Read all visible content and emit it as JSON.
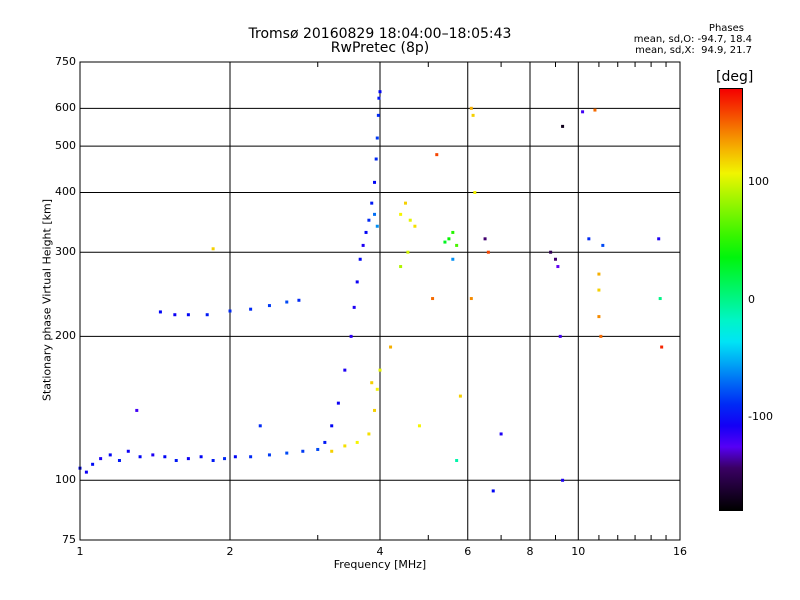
{
  "title_line1": "Tromsø 20160829 18:04:00–18:05:43",
  "title_line2": "RwPretec (8p)",
  "stats": {
    "heading": "Phases",
    "line_o": "mean, sd,O: -94.7, 18.4",
    "line_x": "mean, sd,X:  94.9, 21.7"
  },
  "colorbar": {
    "label": "[deg]",
    "ticks": [
      {
        "value": 100,
        "label": "100"
      },
      {
        "value": 0,
        "label": "0"
      },
      {
        "value": -100,
        "label": "-100"
      }
    ],
    "range": [
      -180,
      180
    ]
  },
  "chart_data": {
    "type": "scatter",
    "xlabel": "Frequency [MHz]",
    "ylabel": "Stationary phase Virtual Height [km]",
    "x_scale": "log",
    "y_scale": "log",
    "xlim": [
      1,
      16
    ],
    "ylim": [
      75,
      750
    ],
    "x_ticks": [
      {
        "value": 1,
        "label": "1"
      },
      {
        "value": 2,
        "label": "2"
      },
      {
        "value": 4,
        "label": "4"
      },
      {
        "value": 6,
        "label": "6"
      },
      {
        "value": 8,
        "label": "8"
      },
      {
        "value": 10,
        "label": "10"
      },
      {
        "value": 16,
        "label": "16"
      }
    ],
    "y_ticks": [
      {
        "value": 75,
        "label": "75"
      },
      {
        "value": 100,
        "label": "100"
      },
      {
        "value": 200,
        "label": "200"
      },
      {
        "value": 300,
        "label": "300"
      },
      {
        "value": 400,
        "label": "400"
      },
      {
        "value": 500,
        "label": "500"
      },
      {
        "value": 600,
        "label": "600"
      },
      {
        "value": 750,
        "label": "750"
      }
    ],
    "grid": true,
    "color_by": "phase (deg)",
    "series": [
      {
        "points": [
          [
            1.0,
            106,
            -100
          ],
          [
            1.03,
            104,
            -105
          ],
          [
            1.06,
            108,
            -98
          ],
          [
            1.1,
            111,
            -110
          ],
          [
            1.15,
            113,
            -100
          ],
          [
            1.2,
            110,
            -95
          ],
          [
            1.25,
            115,
            -105
          ],
          [
            1.32,
            112,
            -100
          ],
          [
            1.4,
            113,
            -110
          ],
          [
            1.48,
            112,
            -100
          ],
          [
            1.56,
            110,
            -95
          ],
          [
            1.65,
            111,
            -105
          ],
          [
            1.75,
            112,
            -100
          ],
          [
            1.85,
            110,
            -95
          ],
          [
            1.95,
            111,
            -90
          ],
          [
            2.05,
            112,
            -100
          ],
          [
            2.2,
            112,
            -90
          ],
          [
            2.4,
            113,
            -85
          ],
          [
            2.6,
            114,
            -80
          ],
          [
            2.8,
            115,
            -85
          ],
          [
            3.0,
            116,
            -80
          ],
          [
            3.1,
            120,
            -95
          ],
          [
            3.2,
            130,
            -100
          ],
          [
            3.3,
            145,
            -105
          ],
          [
            3.4,
            170,
            -110
          ],
          [
            3.5,
            200,
            -115
          ],
          [
            3.55,
            230,
            -110
          ],
          [
            3.6,
            260,
            -105
          ],
          [
            3.65,
            290,
            -100
          ],
          [
            3.7,
            310,
            -110
          ],
          [
            3.75,
            330,
            -100
          ],
          [
            3.8,
            350,
            -90
          ],
          [
            3.85,
            380,
            -95
          ],
          [
            3.9,
            420,
            -100
          ],
          [
            3.93,
            470,
            -90
          ],
          [
            3.95,
            520,
            -85
          ],
          [
            3.97,
            580,
            -90
          ],
          [
            3.98,
            630,
            -95
          ],
          [
            4.0,
            650,
            -100
          ],
          [
            3.9,
            360,
            -70
          ],
          [
            3.95,
            340,
            -60
          ],
          [
            1.45,
            225,
            -100
          ],
          [
            1.55,
            222,
            -105
          ],
          [
            1.65,
            222,
            -100
          ],
          [
            1.8,
            222,
            -95
          ],
          [
            2.0,
            226,
            -90
          ],
          [
            2.2,
            228,
            -90
          ],
          [
            2.4,
            232,
            -85
          ],
          [
            2.6,
            236,
            -80
          ],
          [
            2.75,
            238,
            -90
          ],
          [
            1.3,
            140,
            -120
          ],
          [
            2.3,
            130,
            -90
          ],
          [
            1.85,
            305,
            120
          ],
          [
            3.2,
            115,
            120
          ],
          [
            3.4,
            118,
            115
          ],
          [
            3.6,
            120,
            110
          ],
          [
            3.8,
            125,
            115
          ],
          [
            3.9,
            140,
            120
          ],
          [
            3.95,
            155,
            110
          ],
          [
            4.0,
            170,
            105
          ],
          [
            3.85,
            160,
            120
          ],
          [
            4.4,
            360,
            110
          ],
          [
            4.5,
            380,
            120
          ],
          [
            4.6,
            350,
            105
          ],
          [
            4.7,
            340,
            115
          ],
          [
            4.55,
            300,
            100
          ],
          [
            4.4,
            280,
            90
          ],
          [
            5.5,
            320,
            40
          ],
          [
            5.6,
            330,
            50
          ],
          [
            5.4,
            315,
            30
          ],
          [
            5.7,
            310,
            60
          ],
          [
            5.6,
            290,
            -60
          ],
          [
            6.1,
            600,
            130
          ],
          [
            6.15,
            580,
            120
          ],
          [
            6.2,
            400,
            110
          ],
          [
            6.1,
            240,
            140
          ],
          [
            6.6,
            300,
            160
          ],
          [
            6.5,
            320,
            -140
          ],
          [
            6.75,
            95,
            -100
          ],
          [
            7.0,
            125,
            -110
          ],
          [
            8.8,
            300,
            -150
          ],
          [
            9.0,
            290,
            -140
          ],
          [
            9.1,
            280,
            -130
          ],
          [
            9.2,
            200,
            -120
          ],
          [
            9.3,
            100,
            -110
          ],
          [
            9.3,
            550,
            -170
          ],
          [
            10.2,
            590,
            -120
          ],
          [
            10.8,
            595,
            150
          ],
          [
            10.5,
            320,
            -90
          ],
          [
            11.0,
            270,
            130
          ],
          [
            11.0,
            250,
            120
          ],
          [
            11.0,
            220,
            140
          ],
          [
            11.1,
            200,
            150
          ],
          [
            11.2,
            310,
            -80
          ],
          [
            14.5,
            320,
            -110
          ],
          [
            14.6,
            240,
            0
          ],
          [
            14.7,
            190,
            170
          ],
          [
            5.2,
            480,
            160
          ],
          [
            5.1,
            240,
            150
          ],
          [
            5.7,
            110,
            -10
          ],
          [
            5.8,
            150,
            120
          ],
          [
            4.2,
            190,
            130
          ],
          [
            4.8,
            130,
            110
          ]
        ]
      }
    ]
  }
}
